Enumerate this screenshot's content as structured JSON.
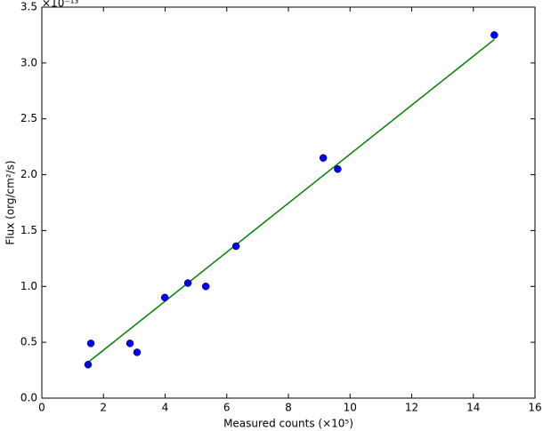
{
  "chart_data": {
    "type": "scatter",
    "x_label": "Measured counts (×10⁵)",
    "y_label": "Flux (org/cm²/s)",
    "y_offset_label": "×10⁻¹³",
    "xlim": [
      0,
      16
    ],
    "xticks": [
      0,
      2,
      4,
      6,
      8,
      10,
      12,
      14,
      16
    ],
    "ylim": [
      0,
      3.5
    ],
    "yticks": [
      {
        "value": 0,
        "label": "0.0"
      },
      0.5,
      {
        "value": 1,
        "label": "1.0"
      },
      1.5,
      {
        "value": 2,
        "label": "2.0"
      },
      2.5,
      {
        "value": 3,
        "label": "3.0"
      },
      3.5
    ],
    "grid": false,
    "series": [
      {
        "type": "scatter",
        "color": "#0000ff",
        "x": [
          1.5,
          1.59,
          2.86,
          3.09,
          3.99,
          4.74,
          5.32,
          6.3,
          9.13,
          9.6,
          14.68
        ],
        "values": [
          0.3,
          0.49,
          0.49,
          0.41,
          0.9,
          1.03,
          1.0,
          1.36,
          2.15,
          2.05,
          3.25
        ]
      },
      {
        "type": "line",
        "color": "#008000",
        "x": [
          1.5,
          14.68
        ],
        "values": [
          0.32,
          3.21
        ]
      }
    ]
  }
}
